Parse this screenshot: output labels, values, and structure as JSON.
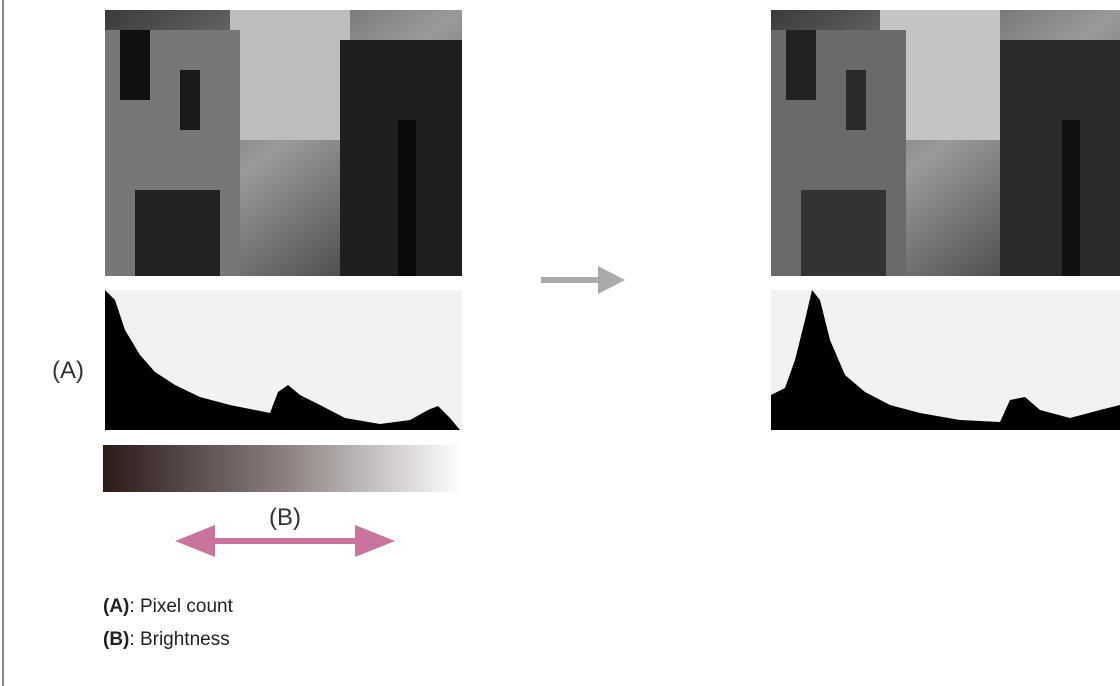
{
  "labels": {
    "a": "(A)",
    "b": "(B)"
  },
  "legend": [
    {
      "key": "(A)",
      "text": ": Pixel count"
    },
    {
      "key": "(B)",
      "text": ": Brightness"
    }
  ]
}
